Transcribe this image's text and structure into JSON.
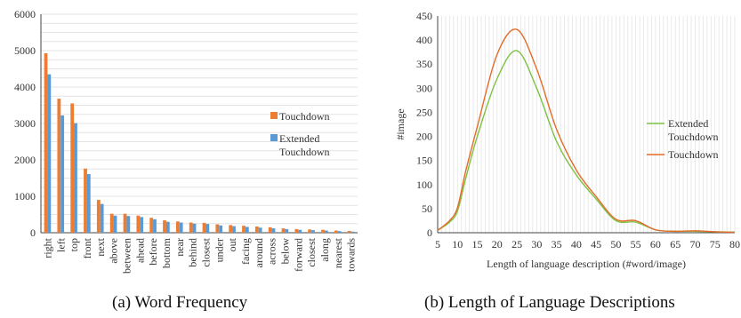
{
  "captions": {
    "a": "(a)  Word Frequency",
    "b": "(b)  Length of Language Descriptions"
  },
  "colors": {
    "touchdown": "#ED7D31",
    "extended": "#5B9BD5",
    "line_touchdown": "#E46C2A",
    "line_extended": "#7CC242",
    "grid": "#e4e4e4",
    "axis": "#444444"
  },
  "chart_data": [
    {
      "type": "bar",
      "title": "",
      "xlabel": "",
      "ylabel": "",
      "ylim": [
        0,
        6000
      ],
      "yticks": [
        "0",
        "1000",
        "2000",
        "3000",
        "4000",
        "5000",
        "6000"
      ],
      "grid": true,
      "legend_position": "right",
      "categories": [
        "right",
        "left",
        "top",
        "front",
        "next",
        "above",
        "between",
        "ahead",
        "before",
        "bottom",
        "near",
        "behind",
        "closest",
        "under",
        "out",
        "facing",
        "around",
        "across",
        "below",
        "forward",
        "closest",
        "along",
        "nearest",
        "towards"
      ],
      "series": [
        {
          "name": "Touchdown",
          "values": [
            4930,
            3680,
            3550,
            1760,
            900,
            520,
            520,
            470,
            410,
            340,
            310,
            280,
            270,
            230,
            210,
            190,
            170,
            150,
            120,
            100,
            90,
            80,
            60,
            50
          ]
        },
        {
          "name": "Extended\nTouchdown",
          "values": [
            4350,
            3220,
            3010,
            1610,
            790,
            470,
            460,
            430,
            370,
            300,
            280,
            250,
            240,
            200,
            180,
            160,
            140,
            120,
            100,
            80,
            70,
            60,
            45,
            30
          ]
        }
      ]
    },
    {
      "type": "line",
      "title": "",
      "xlabel": "Length of language description  (#word/image)",
      "ylabel": "#image",
      "xlim": [
        5,
        80
      ],
      "ylim": [
        0,
        450
      ],
      "xticks": [
        "5",
        "10",
        "15",
        "20",
        "25",
        "30",
        "35",
        "40",
        "45",
        "50",
        "55",
        "60",
        "65",
        "70",
        "75",
        "80"
      ],
      "yticks": [
        "0",
        "50",
        "100",
        "150",
        "200",
        "250",
        "300",
        "350",
        "400",
        "450"
      ],
      "grid": true,
      "legend_position": "right",
      "x": [
        5,
        8,
        10,
        12,
        15,
        20,
        25,
        30,
        35,
        40,
        45,
        50,
        55,
        60,
        65,
        70,
        75,
        80
      ],
      "series": [
        {
          "name": "Extended\nTouchdown",
          "values": [
            5,
            22,
            45,
            110,
            200,
            320,
            378,
            300,
            190,
            120,
            70,
            25,
            22,
            6,
            3,
            3,
            2,
            1
          ]
        },
        {
          "name": "Touchdown",
          "values": [
            5,
            25,
            52,
            125,
            220,
            370,
            422,
            340,
            215,
            130,
            75,
            28,
            25,
            6,
            3,
            4,
            2,
            1
          ]
        }
      ]
    }
  ]
}
